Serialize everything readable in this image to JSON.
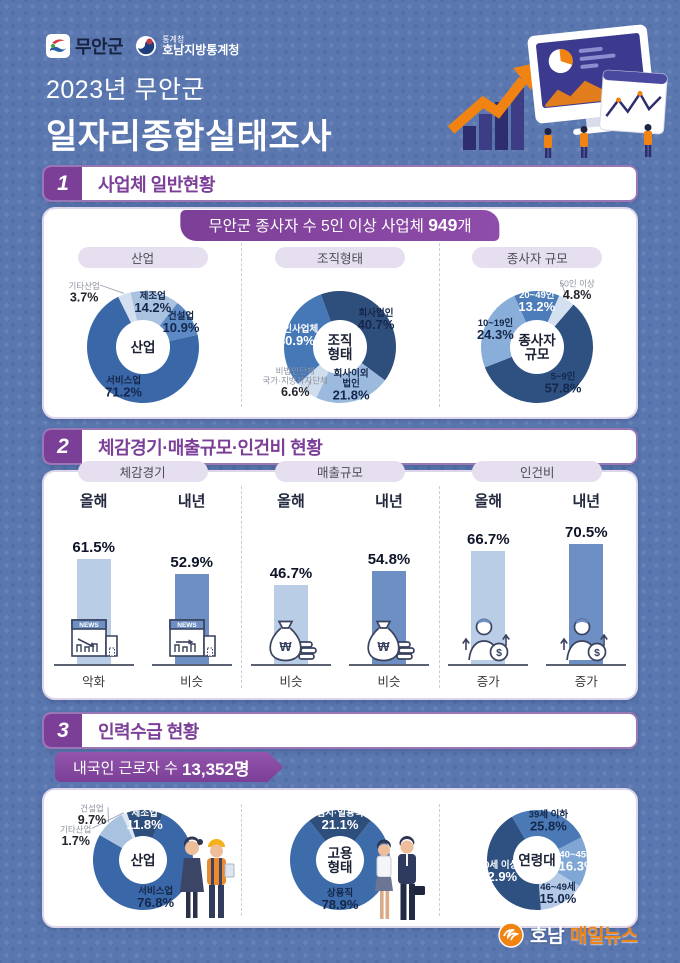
{
  "header": {
    "logo_muan": "무안군",
    "logo_stats_top": "통계청",
    "logo_stats_bottom": "호남지방통계청",
    "title_line1": "2023년 무안군",
    "title_line2": "일자리종합실태조사"
  },
  "s1": {
    "num": "1",
    "title": "사업체 일반현황",
    "banner_prefix": "무안군 종사자 수 5인 이상 사업체 ",
    "banner_bold": "949",
    "banner_suffix": "개",
    "tabs": [
      "산업",
      "조직형태",
      "종사자 규모"
    ]
  },
  "s2": {
    "num": "2",
    "title": "체감경기·매출규모·인건비 현황",
    "tabs": [
      "체감경기",
      "매출규모",
      "인건비"
    ]
  },
  "s3": {
    "num": "3",
    "title": "인력수급 현황",
    "banner_prefix": "내국인 근로자 수 ",
    "banner_bold": "13,352명"
  },
  "footer": {
    "brand_prefix": "호남",
    "brand_suffix": "매일뉴스"
  },
  "palette": {
    "purple": "#7c3f97",
    "bar_this_year": "#b9cde7",
    "bar_next_year": "#6d8fc4",
    "pie_dark_navy": "#2e4e7c",
    "pie_medium_blue": "#3a67a8",
    "pie_light_blue": "#a9c2e0",
    "pie_pale_blue": "#d3e0ef",
    "background_blue": "#5a77b0",
    "brand_orange": "#f08312"
  },
  "icon_text": {
    "news": "NEWS",
    "won": "W",
    "dollar": "$"
  },
  "chart_data": [
    {
      "type": "pie",
      "title": "산업",
      "section": "사업체 일반현황",
      "center": "산업",
      "start": -13,
      "slices": [
        {
          "label": "제조업",
          "value": 14.2,
          "color": "#a9c2e0",
          "tc": "dark"
        },
        {
          "label": "건설업",
          "value": 10.9,
          "color": "#5d89c4",
          "tc": "dark"
        },
        {
          "label": "서비스업",
          "value": 71.2,
          "color": "#3a67a8",
          "tc": "dark"
        },
        {
          "label": "기타산업",
          "value": 3.7,
          "color": "#d3e0ef",
          "outside": true,
          "lox": -22,
          "loy": 6
        }
      ]
    },
    {
      "type": "pie",
      "title": "조직형태",
      "section": "사업체 일반현황",
      "center": "조직\n형태",
      "start": -20,
      "slices": [
        {
          "label": "회사법인",
          "value": 40.7,
          "color": "#2e4e7c",
          "tc": "dark"
        },
        {
          "label": "회사이외\n법인",
          "value": 21.8,
          "color": "#9bbade",
          "tc": "dark"
        },
        {
          "label": "비법인단체\n국가·지방자치단체",
          "value": 6.6,
          "color": "#cfdded",
          "outside": true,
          "lox": 10,
          "loy": -18
        },
        {
          "label": "개인사업체",
          "value": 30.9,
          "color": "#4677b6",
          "tc": "white"
        }
      ]
    },
    {
      "type": "pie",
      "title": "종사자 규모",
      "section": "사업체 일반현황",
      "center": "종사자\n규모",
      "start": -24,
      "slices": [
        {
          "label": "20~49인",
          "value": 13.2,
          "color": "#4c7cba",
          "tc": "white"
        },
        {
          "label": "50인 이상",
          "value": 4.8,
          "color": "#d3e0ef",
          "outside": true,
          "lox": -10,
          "loy": -3
        },
        {
          "label": "5~9인",
          "value": 57.8,
          "color": "#2e5182",
          "tc": "dark"
        },
        {
          "label": "10~19인",
          "value": 24.3,
          "color": "#89aed9",
          "tc": "dark"
        }
      ]
    },
    {
      "type": "bar",
      "title": "체감경기",
      "section": "체감경기·매출규모·인건비 현황",
      "categories": [
        "올해",
        "내년"
      ],
      "values": [
        61.5,
        52.9
      ],
      "captions": [
        "악화",
        "비슷"
      ],
      "icons": [
        "news-down",
        "news-flat"
      ],
      "ylim": [
        0,
        100
      ]
    },
    {
      "type": "bar",
      "title": "매출규모",
      "section": "체감경기·매출규모·인건비 현황",
      "categories": [
        "올해",
        "내년"
      ],
      "values": [
        46.7,
        54.8
      ],
      "captions": [
        "비슷",
        "비슷"
      ],
      "icons": [
        "money-bag",
        "money-bag"
      ],
      "ylim": [
        0,
        100
      ]
    },
    {
      "type": "bar",
      "title": "인건비",
      "section": "체감경기·매출규모·인건비 현황",
      "categories": [
        "올해",
        "내년"
      ],
      "values": [
        66.7,
        70.5
      ],
      "captions": [
        "증가",
        "증가"
      ],
      "icons": [
        "person-up",
        "person-up"
      ],
      "ylim": [
        0,
        100
      ]
    },
    {
      "type": "pie",
      "title": "산업",
      "section": "인력수급 현황",
      "center": "산업",
      "start": -19,
      "slices": [
        {
          "label": "제조업",
          "value": 11.8,
          "color": "#2e4e7c",
          "tc": "white"
        },
        {
          "label": "서비스업",
          "value": 76.8,
          "color": "#3a67a8",
          "tc": "dark"
        },
        {
          "label": "건설업",
          "value": 9.7,
          "color": "#a9c2e0",
          "outside": true,
          "lox": 5,
          "loy": -3
        },
        {
          "label": "기타산업",
          "value": 1.7,
          "color": "#dde6f3",
          "outside": true,
          "lox": -30,
          "loy": 30
        }
      ]
    },
    {
      "type": "pie",
      "title": "고용형태",
      "section": "인력수급 현황",
      "center": "고용\n형태",
      "start": -38,
      "slices": [
        {
          "label": "임시·일용직",
          "value": 21.1,
          "color": "#2e4e7c",
          "tc": "white"
        },
        {
          "label": "상용직",
          "value": 78.9,
          "color": "#3e6cab",
          "tc": "dark"
        }
      ]
    },
    {
      "type": "pie",
      "title": "연령대",
      "section": "인력수급 현황",
      "center": "연령대",
      "start": -30,
      "slices": [
        {
          "label": "39세 이하",
          "value": 25.8,
          "color": "#4a79b5",
          "tc": "dark"
        },
        {
          "label": "40~45세",
          "value": 16.3,
          "color": "#7fa6d4",
          "tc": "white"
        },
        {
          "label": "46~49세",
          "value": 15.0,
          "color": "#b3c9e5",
          "tc": "dark"
        },
        {
          "label": "50세 이상",
          "value": 42.9,
          "color": "#2e5182",
          "tc": "white"
        }
      ]
    }
  ]
}
